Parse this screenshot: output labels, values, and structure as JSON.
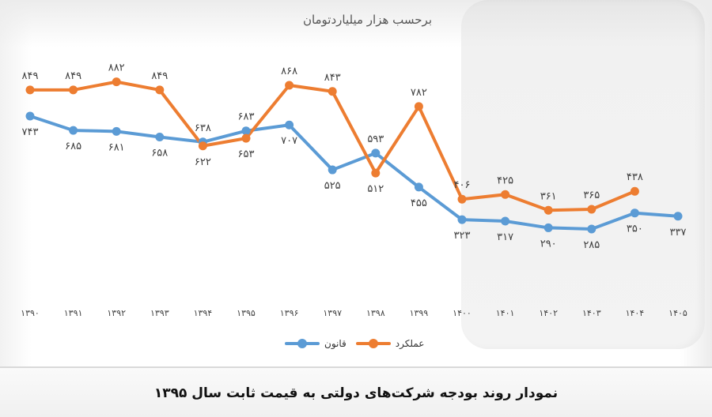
{
  "chart_data": {
    "type": "line",
    "title": "نمودار روند بودجه شرکت‌های دولتی به قیمت ثابت سال ۱۳۹۵",
    "subtitle": "برحسب هزار میلیاردتومان",
    "xlabel": "",
    "ylabel": "",
    "grid": false,
    "legend_position": "bottom",
    "categories": [
      "۱۳۹۰",
      "۱۳۹۱",
      "۱۳۹۲",
      "۱۳۹۳",
      "۱۳۹۴",
      "۱۳۹۵",
      "۱۳۹۶",
      "۱۳۹۷",
      "۱۳۹۸",
      "۱۳۹۹",
      "۱۴۰۰",
      "۱۴۰۱",
      "۱۴۰۲",
      "۱۴۰۳",
      "۱۴۰۴",
      "۱۴۰۵"
    ],
    "x": [
      1390,
      1391,
      1392,
      1393,
      1394,
      1395,
      1396,
      1397,
      1398,
      1399,
      1400,
      1401,
      1402,
      1403,
      1404,
      1405
    ],
    "series": [
      {
        "name": "قانون",
        "color": "#5b9bd5",
        "values": [
          743,
          685,
          681,
          658,
          638,
          683,
          707,
          525,
          593,
          455,
          323,
          317,
          290,
          285,
          350,
          337
        ],
        "labels": [
          "۷۴۳",
          "۶۸۵",
          "۶۸۱",
          "۶۵۸",
          "۶۳۸",
          "۶۸۳",
          "۷۰۷",
          "۵۲۵",
          "۵۹۳",
          "۴۵۵",
          "۳۲۳",
          "۳۱۷",
          "۲۹۰",
          "۲۸۵",
          "۳۵۰",
          "۳۳۷"
        ]
      },
      {
        "name": "عملکرد",
        "color": "#ed7d31",
        "values": [
          849,
          849,
          882,
          849,
          622,
          653,
          868,
          843,
          512,
          782,
          406,
          425,
          361,
          365,
          438,
          null
        ],
        "labels": [
          "۸۴۹",
          "۸۴۹",
          "۸۸۲",
          "۸۴۹",
          "۶۲۲",
          "۶۵۳",
          "۸۶۸",
          "۸۴۳",
          "۵۱۲",
          "۷۸۲",
          "۴۰۶",
          "۴۲۵",
          "۳۶۱",
          "۳۶۵",
          "۴۳۸",
          null
        ]
      }
    ],
    "highlighted_range": [
      "۱۴۰۰",
      "۱۴۰۵"
    ]
  },
  "subtitle": "برحسب هزار میلیاردتومان",
  "legend": {
    "law_label": "قانون",
    "performance_label": "عملکرد"
  },
  "caption": "نمودار روند بودجه شرکت‌های دولتی به قیمت ثابت سال ۱۳۹۵"
}
